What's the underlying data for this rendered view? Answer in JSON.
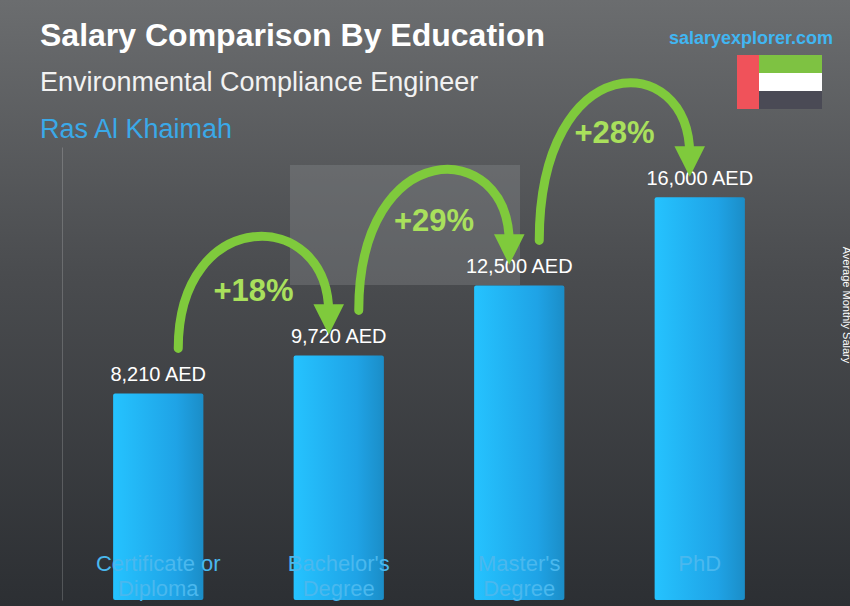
{
  "chart_data": {
    "type": "bar",
    "title": "Salary Comparison By Education",
    "subtitle": [
      "Environmental Compliance Engineer",
      "Ras Al Khaimah"
    ],
    "source": "salaryexplorer.com",
    "y_label": "Average Monthly Salary",
    "categories": [
      "Certificate or Diploma",
      "Bachelor's Degree",
      "Master's Degree",
      "PhD"
    ],
    "values": [
      8210,
      9720,
      12500,
      16000
    ],
    "value_labels": [
      "8,210 AED",
      "9,720 AED",
      "12,500 AED",
      "16,000 AED"
    ],
    "data_labels": true,
    "annotations": [
      "+18%",
      "+29%",
      "+28%"
    ],
    "color": "#1fa3e6",
    "ylim": [
      0,
      18000
    ],
    "tick_labels": "x",
    "grid": false
  }
}
